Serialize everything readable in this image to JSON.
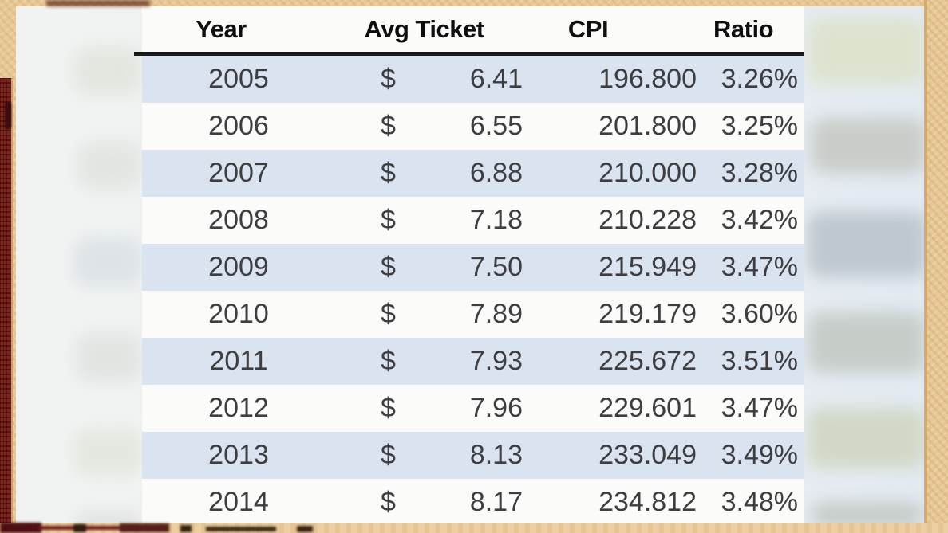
{
  "chart_data": {
    "type": "table",
    "columns": [
      "Year",
      "Avg Ticket",
      "CPI",
      "Ratio"
    ],
    "currency_symbol": "$",
    "rows": [
      {
        "year": "2005",
        "avg_ticket": "6.41",
        "cpi": "196.800",
        "ratio": "3.26%"
      },
      {
        "year": "2006",
        "avg_ticket": "6.55",
        "cpi": "201.800",
        "ratio": "3.25%"
      },
      {
        "year": "2007",
        "avg_ticket": "6.88",
        "cpi": "210.000",
        "ratio": "3.28%"
      },
      {
        "year": "2008",
        "avg_ticket": "7.18",
        "cpi": "210.228",
        "ratio": "3.42%"
      },
      {
        "year": "2009",
        "avg_ticket": "7.50",
        "cpi": "215.949",
        "ratio": "3.47%"
      },
      {
        "year": "2010",
        "avg_ticket": "7.89",
        "cpi": "219.179",
        "ratio": "3.60%"
      },
      {
        "year": "2011",
        "avg_ticket": "7.93",
        "cpi": "225.672",
        "ratio": "3.51%"
      },
      {
        "year": "2012",
        "avg_ticket": "7.96",
        "cpi": "229.601",
        "ratio": "3.47%"
      },
      {
        "year": "2013",
        "avg_ticket": "8.13",
        "cpi": "233.049",
        "ratio": "3.49%"
      },
      {
        "year": "2014",
        "avg_ticket": "8.17",
        "cpi": "234.812",
        "ratio": "3.48%"
      }
    ],
    "layout_hints": {
      "stripe_color": "#dae3f0",
      "table_background": "#fbfbf9",
      "header_rule_color": "#1b1b1b",
      "frame_color": "#e7c795",
      "spine_color": "#7e241b"
    }
  }
}
